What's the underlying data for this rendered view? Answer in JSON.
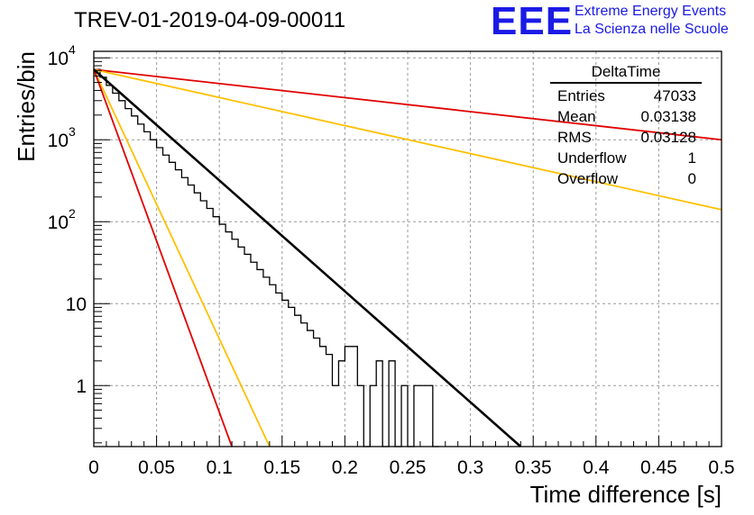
{
  "chart_data": {
    "type": "histogram",
    "title": "TREV-01-2019-04-09-00011",
    "xlabel": "Time difference [s]",
    "ylabel": "Entries/bin",
    "xlim": [
      0,
      0.5
    ],
    "ylim": [
      0.18,
      12000
    ],
    "yscale": "log",
    "grid": true,
    "xticks": [
      {
        "v": 0,
        "label": "0"
      },
      {
        "v": 0.05,
        "label": "0.05"
      },
      {
        "v": 0.1,
        "label": "0.1"
      },
      {
        "v": 0.15,
        "label": "0.15"
      },
      {
        "v": 0.2,
        "label": "0.2"
      },
      {
        "v": 0.25,
        "label": "0.25"
      },
      {
        "v": 0.3,
        "label": "0.3"
      },
      {
        "v": 0.35,
        "label": "0.35"
      },
      {
        "v": 0.4,
        "label": "0.4"
      },
      {
        "v": 0.45,
        "label": "0.45"
      },
      {
        "v": 0.5,
        "label": "0.5"
      }
    ],
    "yticks": [
      {
        "v": 1,
        "label": "1"
      },
      {
        "v": 10,
        "label": "10"
      },
      {
        "v": 100,
        "label": "10",
        "exp": "2"
      },
      {
        "v": 1000,
        "label": "10",
        "exp": "3"
      },
      {
        "v": 10000,
        "label": "10",
        "exp": "4"
      }
    ],
    "histogram": {
      "bin_width": 0.005,
      "values": [
        7200,
        5800,
        4600,
        3700,
        3000,
        2400,
        1950,
        1550,
        1250,
        1000,
        800,
        650,
        530,
        430,
        345,
        280,
        225,
        180,
        145,
        115,
        93,
        75,
        61,
        49,
        40,
        32,
        26,
        21,
        17,
        13.5,
        11,
        9,
        7.2,
        5.8,
        4.7,
        3.8,
        3,
        2.4,
        1,
        2,
        3,
        3,
        1,
        0,
        1,
        2,
        0,
        2,
        0,
        1,
        0,
        1,
        1,
        1,
        0
      ]
    },
    "series": [
      {
        "x": [
          0,
          0.0005
        ],
        "y": [
          7200,
          7200
        ],
        "color": "#000000"
      },
      {
        "x": [
          0,
          0.5
        ],
        "y": [
          7200,
          1000
        ],
        "color": "#e00000"
      },
      {
        "x": [
          0,
          0.5
        ],
        "y": [
          7200,
          140
        ],
        "color": "#ffc000"
      },
      {
        "x": [
          0,
          0.14
        ],
        "y": [
          7200,
          0.18
        ],
        "color": "#ffc000"
      },
      {
        "x": [
          0,
          0.11
        ],
        "y": [
          7200,
          0.18
        ],
        "color": "#e00000"
      },
      {
        "x": [
          0,
          0.34
        ],
        "y": [
          7200,
          0.18
        ],
        "color": "#000000"
      }
    ],
    "stats": {
      "name": "DeltaTime",
      "rows": [
        {
          "label": "Entries",
          "value": "47033"
        },
        {
          "label": "Mean",
          "value": "0.03138"
        },
        {
          "label": "RMS",
          "value": "0.03128"
        },
        {
          "label": "Underflow",
          "value": "1"
        },
        {
          "label": "Overflow",
          "value": "0"
        }
      ]
    }
  },
  "logo": {
    "text": "EEE",
    "line1": "Extreme Energy Events",
    "line2": "La Scienza nelle Scuole",
    "color": "#1a1ae6"
  }
}
